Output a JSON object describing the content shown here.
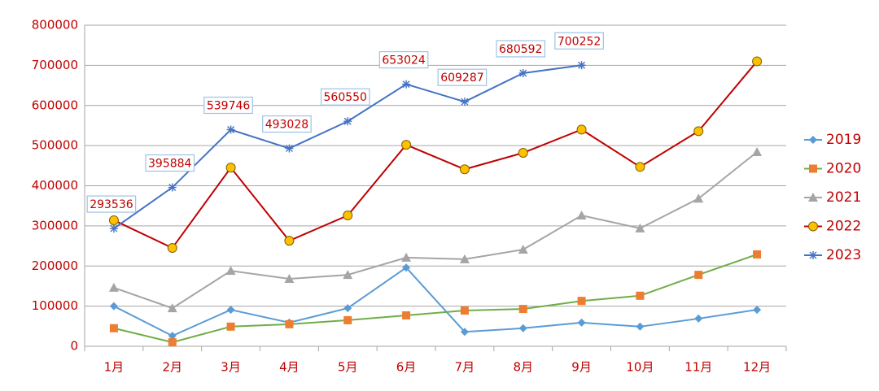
{
  "chart_data": {
    "type": "line",
    "categories": [
      "1月",
      "2月",
      "3月",
      "4月",
      "5月",
      "6月",
      "7月",
      "8月",
      "9月",
      "10月",
      "11月",
      "12月"
    ],
    "series": [
      {
        "name": "2019",
        "color": "#5b9bd5",
        "marker_color": "#5b9bd5",
        "marker": "diamond",
        "values": [
          100000,
          26000,
          91000,
          59000,
          95000,
          196000,
          36000,
          45000,
          59000,
          49000,
          69000,
          91000
        ]
      },
      {
        "name": "2020",
        "color": "#70ad47",
        "marker_color": "#ed7d31",
        "marker": "square",
        "values": [
          45000,
          10000,
          49000,
          55000,
          65000,
          77000,
          89000,
          93000,
          113000,
          126000,
          178000,
          229000
        ]
      },
      {
        "name": "2021",
        "color": "#a5a5a5",
        "marker_color": "#a5a5a5",
        "marker": "triangle",
        "values": [
          146000,
          95000,
          188000,
          168000,
          178000,
          221000,
          217000,
          241000,
          326000,
          294000,
          368000,
          484000
        ]
      },
      {
        "name": "2022",
        "color": "#c00000",
        "marker_color": "#ffc000",
        "marker": "circle",
        "values": [
          314000,
          245000,
          445000,
          263000,
          326000,
          502000,
          441000,
          482000,
          540000,
          447000,
          536000,
          710000
        ]
      },
      {
        "name": "2023",
        "color": "#4472c4",
        "marker_color": "#4472c4",
        "marker": "star",
        "data_labels": true,
        "values": [
          293536,
          395884,
          539746,
          493028,
          560550,
          653024,
          609287,
          680592,
          700252,
          null,
          null,
          null
        ]
      }
    ],
    "ylim": [
      0,
      800000
    ],
    "yticks": [
      0,
      100000,
      200000,
      300000,
      400000,
      500000,
      600000,
      700000,
      800000
    ],
    "grid": true,
    "legend": "right"
  }
}
